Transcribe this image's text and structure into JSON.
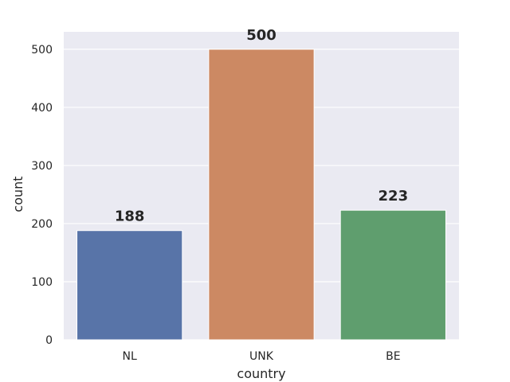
{
  "chart_data": {
    "type": "bar",
    "categories": [
      "NL",
      "UNK",
      "BE"
    ],
    "values": [
      188,
      500,
      223
    ],
    "data_labels": [
      "188",
      "500",
      "223"
    ],
    "colors": [
      "#5874a8",
      "#cc8963",
      "#5f9e6e"
    ],
    "background_color": "#eaeaf2",
    "grid": true,
    "grid_color": "#ffffff",
    "xlabel": "country",
    "ylabel": "count",
    "ylim": [
      0,
      530
    ],
    "yticks": [
      0,
      100,
      200,
      300,
      400,
      500
    ]
  }
}
